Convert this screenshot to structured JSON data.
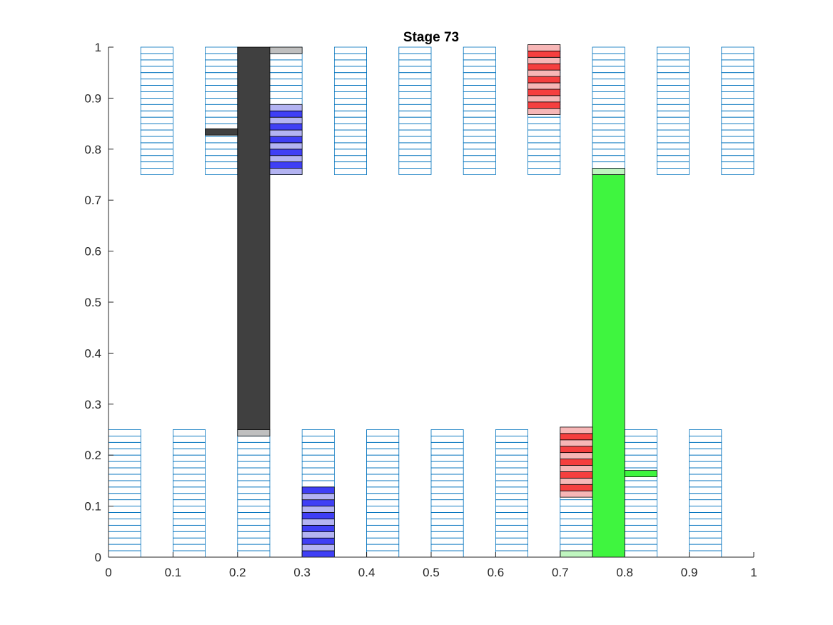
{
  "chart_data": {
    "type": "bar",
    "title": "Stage 73",
    "xlim": [
      0,
      1
    ],
    "ylim": [
      0,
      1
    ],
    "xticks": [
      0,
      0.1,
      0.2,
      0.3,
      0.4,
      0.5,
      0.6,
      0.7,
      0.8,
      0.9,
      1
    ],
    "xtick_labels": [
      "0",
      "0.1",
      "0.2",
      "0.3",
      "0.4",
      "0.5",
      "0.6",
      "0.7",
      "0.8",
      "0.9",
      "1"
    ],
    "yticks": [
      0,
      0.1,
      0.2,
      0.3,
      0.4,
      0.5,
      0.6,
      0.7,
      0.8,
      0.9,
      1
    ],
    "ytick_labels": [
      "0",
      "0.1",
      "0.2",
      "0.3",
      "0.4",
      "0.5",
      "0.6",
      "0.7",
      "0.8",
      "0.9",
      "1"
    ],
    "grid": false,
    "column_width": 0.05,
    "slot_height": 0.0125,
    "columns": [
      {
        "x": 0.0,
        "region": "bottom"
      },
      {
        "x": 0.05,
        "region": "top"
      },
      {
        "x": 0.1,
        "region": "bottom"
      },
      {
        "x": 0.15,
        "region": "top"
      },
      {
        "x": 0.2,
        "region": "bottom"
      },
      {
        "x": 0.25,
        "region": "top"
      },
      {
        "x": 0.3,
        "region": "bottom"
      },
      {
        "x": 0.35,
        "region": "top"
      },
      {
        "x": 0.4,
        "region": "bottom"
      },
      {
        "x": 0.45,
        "region": "top"
      },
      {
        "x": 0.5,
        "region": "bottom"
      },
      {
        "x": 0.55,
        "region": "top"
      },
      {
        "x": 0.6,
        "region": "bottom"
      },
      {
        "x": 0.65,
        "region": "top"
      },
      {
        "x": 0.7,
        "region": "bottom"
      },
      {
        "x": 0.75,
        "region": "top"
      },
      {
        "x": 0.8,
        "region": "bottom"
      },
      {
        "x": 0.85,
        "region": "top"
      },
      {
        "x": 0.9,
        "region": "bottom"
      },
      {
        "x": 0.95,
        "region": "top"
      }
    ],
    "region_ranges": {
      "bottom": [
        0,
        0.25
      ],
      "top": [
        0.75,
        1
      ]
    },
    "colors": {
      "slot_line": "#0072BD",
      "dark": "#404040",
      "dark_light": "#bfbfbf",
      "blue": "#3f3ff5",
      "blue_light": "#b3b3f2",
      "red": "#f53f3f",
      "red_light": "#f7b6b6",
      "green": "#3ff53f",
      "green_light": "#bff5bf",
      "outline": "#000000"
    },
    "blocks": [
      {
        "x0": 0.2,
        "x1": 0.25,
        "y0": 0.25,
        "y1": 1.0,
        "color": "dark"
      },
      {
        "x0": 0.2,
        "x1": 0.25,
        "y0": 0.2375,
        "y1": 0.25,
        "color": "dark_light"
      },
      {
        "x0": 0.15,
        "x1": 0.2,
        "y0": 0.8275,
        "y1": 0.84,
        "color": "dark"
      },
      {
        "x0": 0.25,
        "x1": 0.3,
        "y0": 0.9875,
        "y1": 1.0,
        "color": "dark_light"
      },
      {
        "x0": 0.75,
        "x1": 0.8,
        "y0": 0.0,
        "y1": 0.75,
        "color": "green"
      },
      {
        "x0": 0.75,
        "x1": 0.8,
        "y0": 0.75,
        "y1": 0.7625,
        "color": "green_light"
      },
      {
        "x0": 0.7,
        "x1": 0.75,
        "y0": 0.0,
        "y1": 0.0125,
        "color": "green_light"
      },
      {
        "x0": 0.8,
        "x1": 0.85,
        "y0": 0.1575,
        "y1": 0.17,
        "color": "green"
      }
    ],
    "stripe_stacks": [
      {
        "x0": 0.25,
        "x1": 0.3,
        "y0": 0.75,
        "n": 11,
        "first": "blue_light",
        "second": "blue"
      },
      {
        "x0": 0.3,
        "x1": 0.35,
        "y0": 0.0,
        "n": 11,
        "first": "blue",
        "second": "blue_light"
      },
      {
        "x0": 0.65,
        "x1": 0.7,
        "y0": 0.8675,
        "n": 11,
        "first": "red_light",
        "second": "red"
      },
      {
        "x0": 0.7,
        "x1": 0.75,
        "y0": 0.1175,
        "n": 11,
        "first": "red_light",
        "second": "red"
      }
    ]
  }
}
